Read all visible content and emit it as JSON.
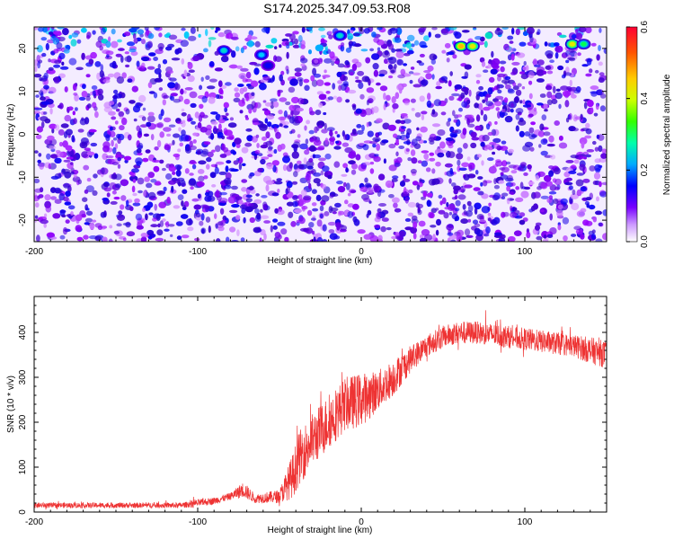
{
  "figure_title": "S174.2025.347.09.53.R08",
  "colors": {
    "signal_line": "#ee3333",
    "colormap": [
      "#ffffff",
      "#9900ff",
      "#3300cc",
      "#0000ff",
      "#00c8ff",
      "#00ff55",
      "#ccff00",
      "#ffcc00",
      "#ff5500",
      "#ff0033"
    ]
  },
  "chart_data": [
    {
      "type": "heatmap",
      "title": "S174.2025.347.09.53.R08",
      "xlabel": "Height of straight line (km)",
      "ylabel": "Frequency (Hz)",
      "xlim": [
        -200,
        150
      ],
      "ylim": [
        -25,
        25
      ],
      "xticks": [
        -200,
        -100,
        0,
        100
      ],
      "yticks": [
        -20,
        -10,
        0,
        10,
        20
      ],
      "colorbar": {
        "label": "Normalized spectral amplitude",
        "range": [
          0.0,
          0.6
        ],
        "ticks": [
          "0.0",
          "0.2",
          "0.4",
          "0.6"
        ]
      },
      "background_level": 0.1,
      "hotspots": [
        {
          "x": -84,
          "y": 19.5,
          "value": 0.3
        },
        {
          "x": -61,
          "y": 18.5,
          "value": 0.28
        },
        {
          "x": -57,
          "y": 16.0,
          "value": 0.2
        },
        {
          "x": -13,
          "y": 23.0,
          "value": 0.3
        },
        {
          "x": 61,
          "y": 20.5,
          "value": 0.5
        },
        {
          "x": 68,
          "y": 20.5,
          "value": 0.45
        },
        {
          "x": 129,
          "y": 21.0,
          "value": 0.45
        },
        {
          "x": 136,
          "y": 21.0,
          "value": 0.35
        }
      ]
    },
    {
      "type": "line",
      "xlabel": "Height of straight line (km)",
      "ylabel": "SNR (10 * v/v)",
      "xlim": [
        -200,
        150
      ],
      "ylim": [
        0,
        480
      ],
      "xticks": [
        -200,
        -100,
        0,
        100
      ],
      "yticks": [
        0,
        100,
        200,
        300,
        400
      ],
      "series": [
        {
          "name": "SNR",
          "envelope_x": [
            -200,
            -150,
            -110,
            -100,
            -90,
            -80,
            -72,
            -65,
            -50,
            -42,
            -38,
            -30,
            -20,
            -10,
            0,
            10,
            20,
            30,
            40,
            50,
            60,
            70,
            80,
            90,
            100,
            110,
            120,
            130,
            140,
            150
          ],
          "envelope_mean": [
            15,
            15,
            15,
            20,
            25,
            35,
            50,
            30,
            35,
            80,
            120,
            160,
            200,
            240,
            250,
            270,
            300,
            340,
            370,
            390,
            400,
            400,
            395,
            390,
            385,
            380,
            375,
            370,
            360,
            350
          ],
          "noise_amplitude": [
            6,
            6,
            6,
            8,
            8,
            8,
            18,
            10,
            15,
            50,
            60,
            60,
            60,
            60,
            60,
            45,
            40,
            30,
            25,
            25,
            25,
            25,
            25,
            25,
            25,
            25,
            25,
            25,
            30,
            30
          ]
        }
      ]
    }
  ]
}
